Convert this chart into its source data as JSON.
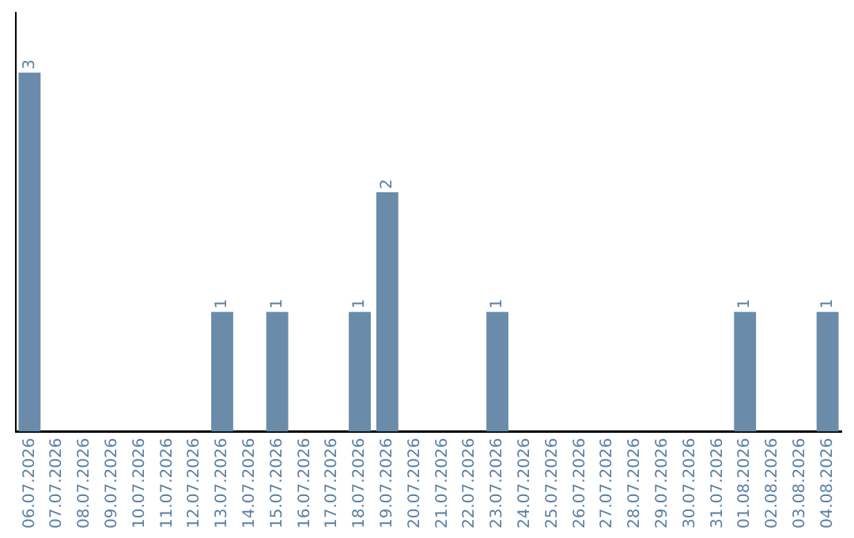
{
  "chart_data": {
    "type": "bar",
    "categories": [
      "06.07.2026",
      "07.07.2026",
      "08.07.2026",
      "09.07.2026",
      "10.07.2026",
      "11.07.2026",
      "12.07.2026",
      "13.07.2026",
      "14.07.2026",
      "15.07.2026",
      "16.07.2026",
      "17.07.2026",
      "18.07.2026",
      "19.07.2026",
      "20.07.2026",
      "21.07.2026",
      "22.07.2026",
      "23.07.2026",
      "24.07.2026",
      "25.07.2026",
      "26.07.2026",
      "27.07.2026",
      "28.07.2026",
      "29.07.2026",
      "30.07.2026",
      "31.07.2026",
      "01.08.2026",
      "02.08.2026",
      "03.08.2026",
      "04.08.2026"
    ],
    "values": [
      3,
      0,
      0,
      0,
      0,
      0,
      0,
      1,
      0,
      1,
      0,
      0,
      1,
      2,
      0,
      0,
      0,
      1,
      0,
      0,
      0,
      0,
      0,
      0,
      0,
      0,
      1,
      0,
      0,
      1
    ],
    "value_labels": [
      "3",
      null,
      null,
      null,
      null,
      null,
      null,
      "1",
      null,
      "1",
      null,
      null,
      "1",
      "2",
      null,
      null,
      null,
      "1",
      null,
      null,
      null,
      null,
      null,
      null,
      null,
      null,
      "1",
      null,
      null,
      "1"
    ],
    "color": "#6a8caa",
    "grid": false,
    "legend": false,
    "tick_labels": "x"
  }
}
